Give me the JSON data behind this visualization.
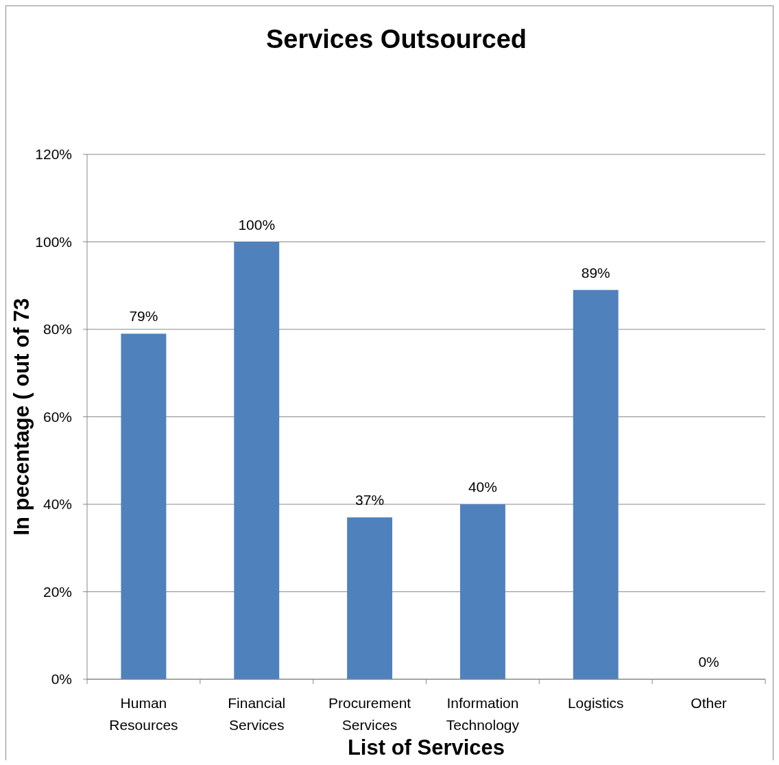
{
  "chart_data": {
    "type": "bar",
    "title": "Services Outsourced",
    "xlabel": "List of Services",
    "ylabel": "In pecentage ( out of 73",
    "categories": [
      "Human Resources",
      "Financial Services",
      "Procurement Services",
      "Information Technology",
      "Logistics",
      "Other"
    ],
    "values": [
      79,
      100,
      37,
      40,
      89,
      0
    ],
    "value_labels": [
      "79%",
      "100%",
      "37%",
      "40%",
      "89%",
      "0%"
    ],
    "color": "#4f81bd",
    "ylim": [
      0,
      120
    ],
    "yticks": [
      {
        "value": 0,
        "label": "0%"
      },
      {
        "value": 20,
        "label": "20%"
      },
      {
        "value": 40,
        "label": "40%"
      },
      {
        "value": 60,
        "label": "60%"
      },
      {
        "value": 80,
        "label": "80%"
      },
      {
        "value": 100,
        "label": "100%"
      },
      {
        "value": 120,
        "label": "120%"
      }
    ],
    "grid": "y"
  }
}
